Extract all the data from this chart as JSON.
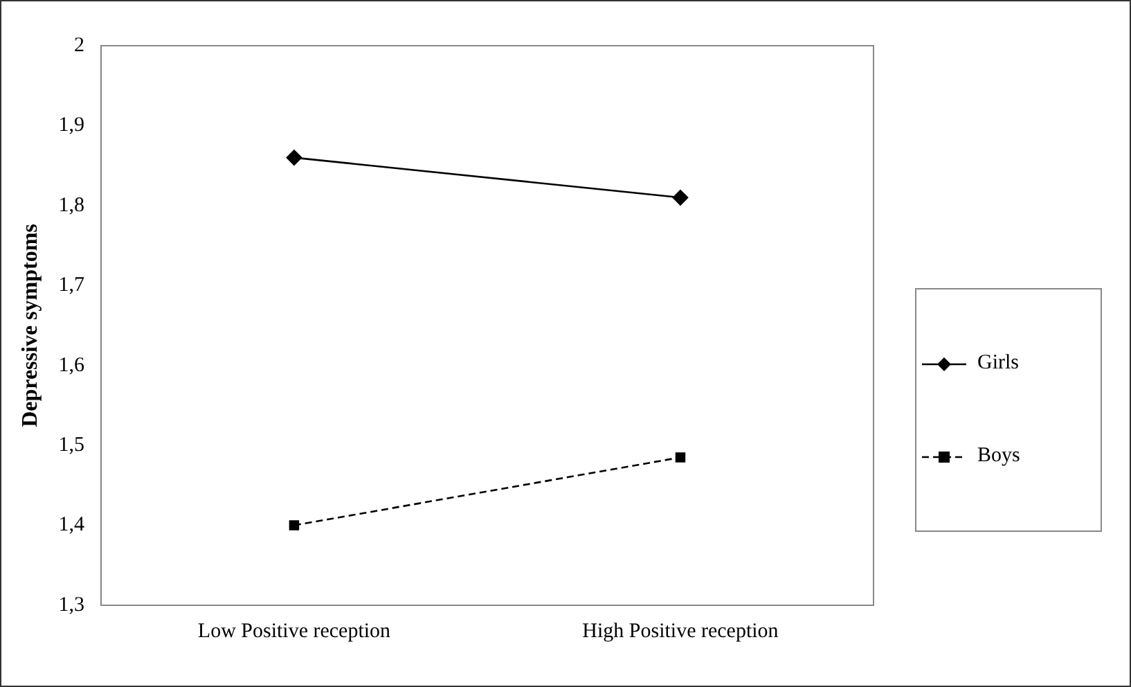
{
  "chart_data": {
    "type": "line",
    "ylabel": "Depressive symptoms",
    "categories": [
      "Low Positive reception",
      "High Positive reception"
    ],
    "series": [
      {
        "name": "Girls",
        "color": "#000000",
        "values": [
          1.86,
          1.81
        ],
        "marker": "diamond",
        "line_style": "solid"
      },
      {
        "name": "Boys",
        "color": "#000000",
        "values": [
          1.4,
          1.485
        ],
        "marker": "square",
        "line_style": "dashed"
      }
    ],
    "ylim": [
      1.3,
      2
    ],
    "yticks": [
      {
        "value": 1.3,
        "label": "1,3"
      },
      {
        "value": 1.4,
        "label": "1,4"
      },
      {
        "value": 1.5,
        "label": "1,5"
      },
      {
        "value": 1.6,
        "label": "1,6"
      },
      {
        "value": 1.7,
        "label": "1,7"
      },
      {
        "value": 1.8,
        "label": "1,8"
      },
      {
        "value": 1.9,
        "label": "1,9"
      },
      {
        "value": 2,
        "label": "2"
      }
    ],
    "grid": false,
    "legend": "right"
  }
}
